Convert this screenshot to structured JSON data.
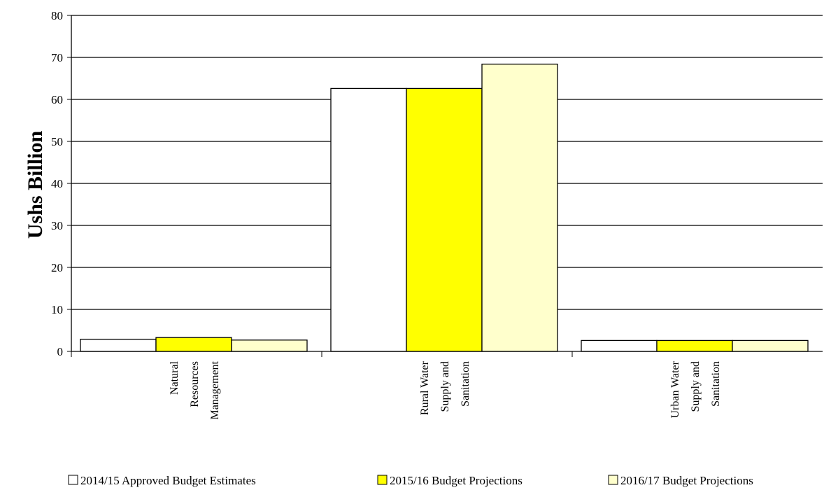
{
  "chart_data": {
    "type": "bar",
    "title": "",
    "xlabel": "",
    "ylabel": "Ushs Billion",
    "ylim": [
      0,
      80
    ],
    "yticks": [
      0,
      10,
      20,
      30,
      40,
      50,
      60,
      70,
      80
    ],
    "grid": true,
    "legend_position": "bottom",
    "categories": [
      [
        "Natural",
        "Resources",
        "Management"
      ],
      [
        "Rural Water",
        "Supply and",
        "Sanitation"
      ],
      [
        "Urban Water",
        "Supply and",
        "Sanitation"
      ]
    ],
    "series": [
      {
        "name": "2014/15 Approved Budget Estimates",
        "color": "#ffffff",
        "values": [
          2.9,
          62.6,
          2.6
        ]
      },
      {
        "name": "2015/16 Budget Projections",
        "color": "#ffff00",
        "values": [
          3.3,
          62.6,
          2.6
        ]
      },
      {
        "name": "2016/17 Budget Projections",
        "color": "#ffffcc",
        "values": [
          2.7,
          68.4,
          2.6
        ]
      }
    ]
  }
}
